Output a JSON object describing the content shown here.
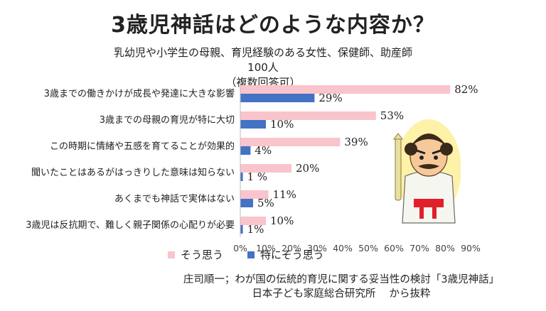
{
  "title": "3歳児神話はどのような内容か？",
  "subtitle_line1": "乳幼児や小学生の母親、育児経験のある女性、保健師、助産師100人",
  "subtitle_line2": "（複数回答可）",
  "legend": [
    {
      "label": "そう思う",
      "color": "#f9c4cb"
    },
    {
      "label": "特にそう思う",
      "color": "#4472c4"
    }
  ],
  "source_line1": "庄司順一；わが国の伝統的育児に関する妥当性の検討「3歳児神話」",
  "source_line2": "日本子ども家庭総合研究所　 から抜粋",
  "mascot_icon": "samurai-mascot-icon",
  "chart_data": {
    "type": "bar",
    "orientation": "horizontal",
    "title": "3歳児神話はどのような内容か？",
    "categories": [
      "3歳までの働きかけが成長や発達に大きな影響",
      "3歳までの母親の育児が特に大切",
      "この時期に情緒や五感を育てることが効果的",
      "聞いたことはあるがはっきりした意味は知らない",
      "あくまでも神話で実体はない",
      "3歳児は反抗期で、難しく親子関係の心配りが必要"
    ],
    "series": [
      {
        "name": "そう思う",
        "color": "#f9c4cb",
        "values": [
          82,
          53,
          39,
          20,
          11,
          10
        ],
        "labels": [
          "82%",
          "53%",
          "39%",
          "20%",
          "11%",
          "10%"
        ]
      },
      {
        "name": "特にそう思う",
        "color": "#4472c4",
        "values": [
          29,
          10,
          4,
          1,
          5,
          1
        ],
        "labels": [
          "29%",
          "10%",
          "4%",
          "1 %",
          "5%",
          "1%"
        ]
      }
    ],
    "xlim": [
      0,
      90
    ],
    "ticks": [
      "0%",
      "10%",
      "20%",
      "30%",
      "40%",
      "50%",
      "60%",
      "70%",
      "80%",
      "90%"
    ],
    "grid": false,
    "legend_position": "bottom"
  }
}
